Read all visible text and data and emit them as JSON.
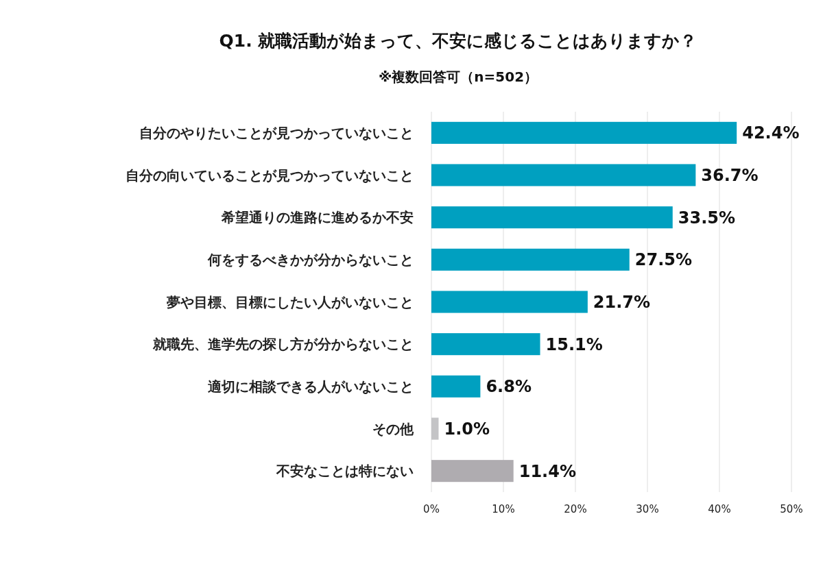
{
  "chart_data": {
    "type": "bar",
    "orientation": "horizontal",
    "title": "Q1.  就職活動が始まって、不安に感じることはありますか？",
    "subtitle": "※複数回答可（n=502）",
    "categories": [
      "自分のやりたいことが見つかっていないこと",
      "自分の向いていることが見つかっていないこと",
      "希望通りの進路に進めるか不安",
      "何をするべきかが分からないこと",
      "夢や目標、目標にしたい人がいないこと",
      "就職先、進学先の探し方が分からないこと",
      "適切に相談できる人がいないこと",
      "その他",
      "不安なことは特にない"
    ],
    "values": [
      42.4,
      36.7,
      33.5,
      27.5,
      21.7,
      15.1,
      6.8,
      1.0,
      11.4
    ],
    "colors": [
      "#00a0c0",
      "#00a0c0",
      "#00a0c0",
      "#00a0c0",
      "#00a0c0",
      "#00a0c0",
      "#00a0c0",
      "#c4c4c6",
      "#afacb0"
    ],
    "value_labels": [
      "42.4%",
      "36.7%",
      "33.5%",
      "27.5%",
      "21.7%",
      "15.1%",
      "6.8%",
      "1.0%",
      "11.4%"
    ],
    "xlim": [
      0,
      50
    ],
    "xticks": [
      {
        "value": 0,
        "label": "0%"
      },
      {
        "value": 10,
        "label": "10%"
      },
      {
        "value": 20,
        "label": "20%"
      },
      {
        "value": 30,
        "label": "30%"
      },
      {
        "value": 40,
        "label": "40%"
      },
      {
        "value": 50,
        "label": "50%"
      }
    ],
    "grid": "x"
  }
}
